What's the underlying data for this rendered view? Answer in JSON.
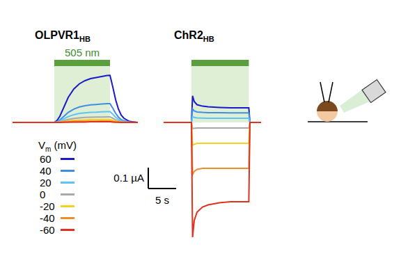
{
  "chart_data": [
    {
      "type": "line",
      "title": {
        "text": "OLPVR1",
        "subscript": "HB"
      },
      "stimulus": [
        7.5,
        17.5
      ],
      "stimulus_label": "505 nm",
      "legend_title": {
        "text": "V",
        "subscript": "m",
        "suffix": " (mV)"
      },
      "xlim": [
        0,
        22.5
      ],
      "ylim": [
        -0.05,
        0.3
      ],
      "tick_labels": false,
      "x": [
        0,
        2,
        4,
        6,
        7,
        7.5,
        8,
        8.5,
        9,
        9.5,
        10,
        11,
        12,
        13,
        14,
        15,
        16,
        17,
        17.5,
        18,
        18.5,
        19,
        19.5,
        20,
        21,
        22.5
      ],
      "series": [
        {
          "name": "60",
          "color": "#1a1ac8",
          "values": [
            0,
            0,
            0,
            0,
            0,
            0,
            0.01,
            0.03,
            0.06,
            0.09,
            0.12,
            0.16,
            0.185,
            0.2,
            0.21,
            0.215,
            0.22,
            0.225,
            0.226,
            0.17,
            0.11,
            0.065,
            0.035,
            0.02,
            0.005,
            0
          ]
        },
        {
          "name": "40",
          "color": "#3f8ee2",
          "values": [
            0,
            0,
            0,
            0,
            0,
            0,
            0.004,
            0.012,
            0.024,
            0.036,
            0.048,
            0.064,
            0.074,
            0.08,
            0.084,
            0.086,
            0.088,
            0.09,
            0.09,
            0.068,
            0.044,
            0.026,
            0.014,
            0.008,
            0.002,
            0
          ]
        },
        {
          "name": "20",
          "color": "#5cc4f0",
          "values": [
            0,
            0,
            0,
            0,
            0,
            0,
            0.002,
            0.007,
            0.014,
            0.021,
            0.028,
            0.037,
            0.043,
            0.046,
            0.048,
            0.049,
            0.051,
            0.052,
            0.052,
            0.039,
            0.025,
            0.015,
            0.008,
            0.005,
            0.001,
            0
          ]
        },
        {
          "name": "0",
          "color": "#a8a8a8",
          "values": [
            0,
            0,
            0,
            0,
            0,
            0,
            0.001,
            0.004,
            0.007,
            0.011,
            0.014,
            0.019,
            0.022,
            0.024,
            0.025,
            0.026,
            0.026,
            0.027,
            0.027,
            0.02,
            0.013,
            0.008,
            0.004,
            0.002,
            0.001,
            0
          ]
        },
        {
          "name": "-20",
          "color": "#f2d024",
          "values": [
            0,
            0,
            0,
            0,
            0,
            0,
            0.001,
            0.002,
            0.004,
            0.005,
            0.007,
            0.01,
            0.011,
            0.012,
            0.013,
            0.013,
            0.013,
            0.014,
            0.014,
            0.01,
            0.007,
            0.004,
            0.002,
            0.001,
            0,
            0
          ]
        },
        {
          "name": "-40",
          "color": "#f08e2c",
          "values": [
            0,
            0,
            0,
            0,
            0,
            0,
            0,
            0.001,
            0.002,
            0.003,
            0.004,
            0.005,
            0.006,
            0.006,
            0.006,
            0.006,
            0.007,
            0.007,
            0.007,
            0.005,
            0.003,
            0.002,
            0.001,
            0.001,
            0,
            0
          ]
        },
        {
          "name": "-60",
          "color": "#e0301e",
          "values": [
            0,
            0,
            0,
            0,
            0,
            0,
            0,
            0,
            0.001,
            0.001,
            0.001,
            0.002,
            0.002,
            0.002,
            0.003,
            0.003,
            0.003,
            0.003,
            0.003,
            0.002,
            0.001,
            0.001,
            0,
            0,
            0,
            0
          ]
        }
      ]
    },
    {
      "type": "line",
      "title": {
        "text": "ChR2",
        "subscript": "HB"
      },
      "stimulus": [
        5,
        15.3
      ],
      "xlim": [
        0,
        17.5
      ],
      "ylim": [
        -0.6,
        0.3
      ],
      "tick_labels": false,
      "x": [
        0,
        2,
        4,
        5,
        5.2,
        5.5,
        6,
        7,
        8,
        10,
        12,
        14,
        15.3,
        15.5,
        16,
        17.5
      ],
      "series": [
        {
          "name": "60",
          "color": "#1a1ac8",
          "values": [
            0,
            0,
            0,
            0,
            0.127,
            0.1,
            0.085,
            0.078,
            0.075,
            0.072,
            0.07,
            0.07,
            0.07,
            0,
            0,
            0
          ]
        },
        {
          "name": "40",
          "color": "#3f8ee2",
          "values": [
            0,
            0,
            0,
            0,
            0.065,
            0.055,
            0.05,
            0.048,
            0.047,
            0.047,
            0.046,
            0.046,
            0.046,
            0,
            0,
            0
          ]
        },
        {
          "name": "20",
          "color": "#5cc4f0",
          "values": [
            0,
            0,
            0,
            0,
            0.028,
            0.024,
            0.022,
            0.021,
            0.02,
            0.02,
            0.02,
            0.02,
            0.02,
            0,
            0,
            0
          ]
        },
        {
          "name": "0",
          "color": "#a8a8a8",
          "values": [
            0,
            0,
            0,
            0,
            -0.03,
            -0.028,
            -0.027,
            -0.027,
            -0.027,
            -0.027,
            -0.027,
            -0.027,
            -0.027,
            0,
            0,
            0
          ]
        },
        {
          "name": "-20",
          "color": "#f2d024",
          "values": [
            0,
            0,
            0,
            0,
            -0.11,
            -0.105,
            -0.1,
            -0.1,
            -0.1,
            -0.1,
            -0.1,
            -0.1,
            -0.1,
            0,
            0,
            0
          ]
        },
        {
          "name": "-40",
          "color": "#f08e2c",
          "values": [
            0,
            0,
            0,
            0,
            -0.25,
            -0.235,
            -0.225,
            -0.22,
            -0.22,
            -0.22,
            -0.22,
            -0.22,
            -0.22,
            0,
            0,
            0
          ]
        },
        {
          "name": "-60",
          "color": "#e0301e",
          "values": [
            0,
            0,
            0,
            0,
            -0.55,
            -0.47,
            -0.43,
            -0.405,
            -0.395,
            -0.385,
            -0.38,
            -0.38,
            -0.38,
            0,
            0,
            0
          ]
        }
      ]
    }
  ],
  "scale_bar": {
    "y": 0.1,
    "y_label": "0.1 µA",
    "x": 5,
    "x_label": "5 s"
  }
}
